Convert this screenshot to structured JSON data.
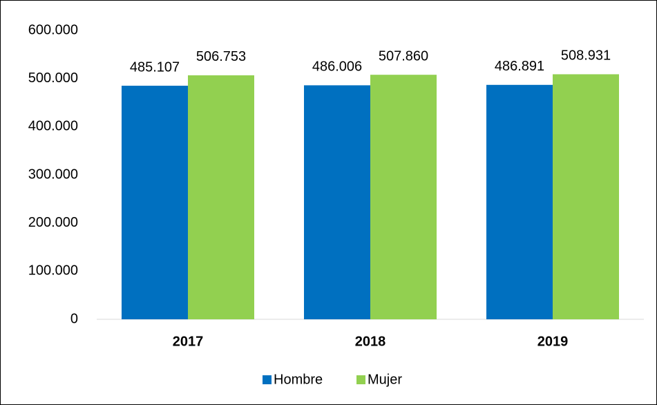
{
  "chart_data": {
    "type": "bar",
    "categories": [
      "2017",
      "2018",
      "2019"
    ],
    "series": [
      {
        "name": "Hombre",
        "color": "#0070c0",
        "values": [
          485107,
          486006,
          486891
        ],
        "value_labels": [
          "485.107",
          "486.006",
          "486.891"
        ]
      },
      {
        "name": "Mujer",
        "color": "#92d050",
        "values": [
          506753,
          507860,
          508931
        ],
        "value_labels": [
          "506.753",
          "507.860",
          "508.931"
        ]
      }
    ],
    "ylim": [
      0,
      600000
    ],
    "yticks": [
      0,
      {
        "value": 100000,
        "label": "100.000"
      },
      {
        "value": 200000,
        "label": "200.000"
      },
      {
        "value": 300000,
        "label": "300.000"
      },
      {
        "value": 400000,
        "label": "400.000"
      },
      {
        "value": 500000,
        "label": "500.000"
      },
      {
        "value": 600000,
        "label": "600.000"
      }
    ],
    "grid": false,
    "legend": "bottom"
  }
}
